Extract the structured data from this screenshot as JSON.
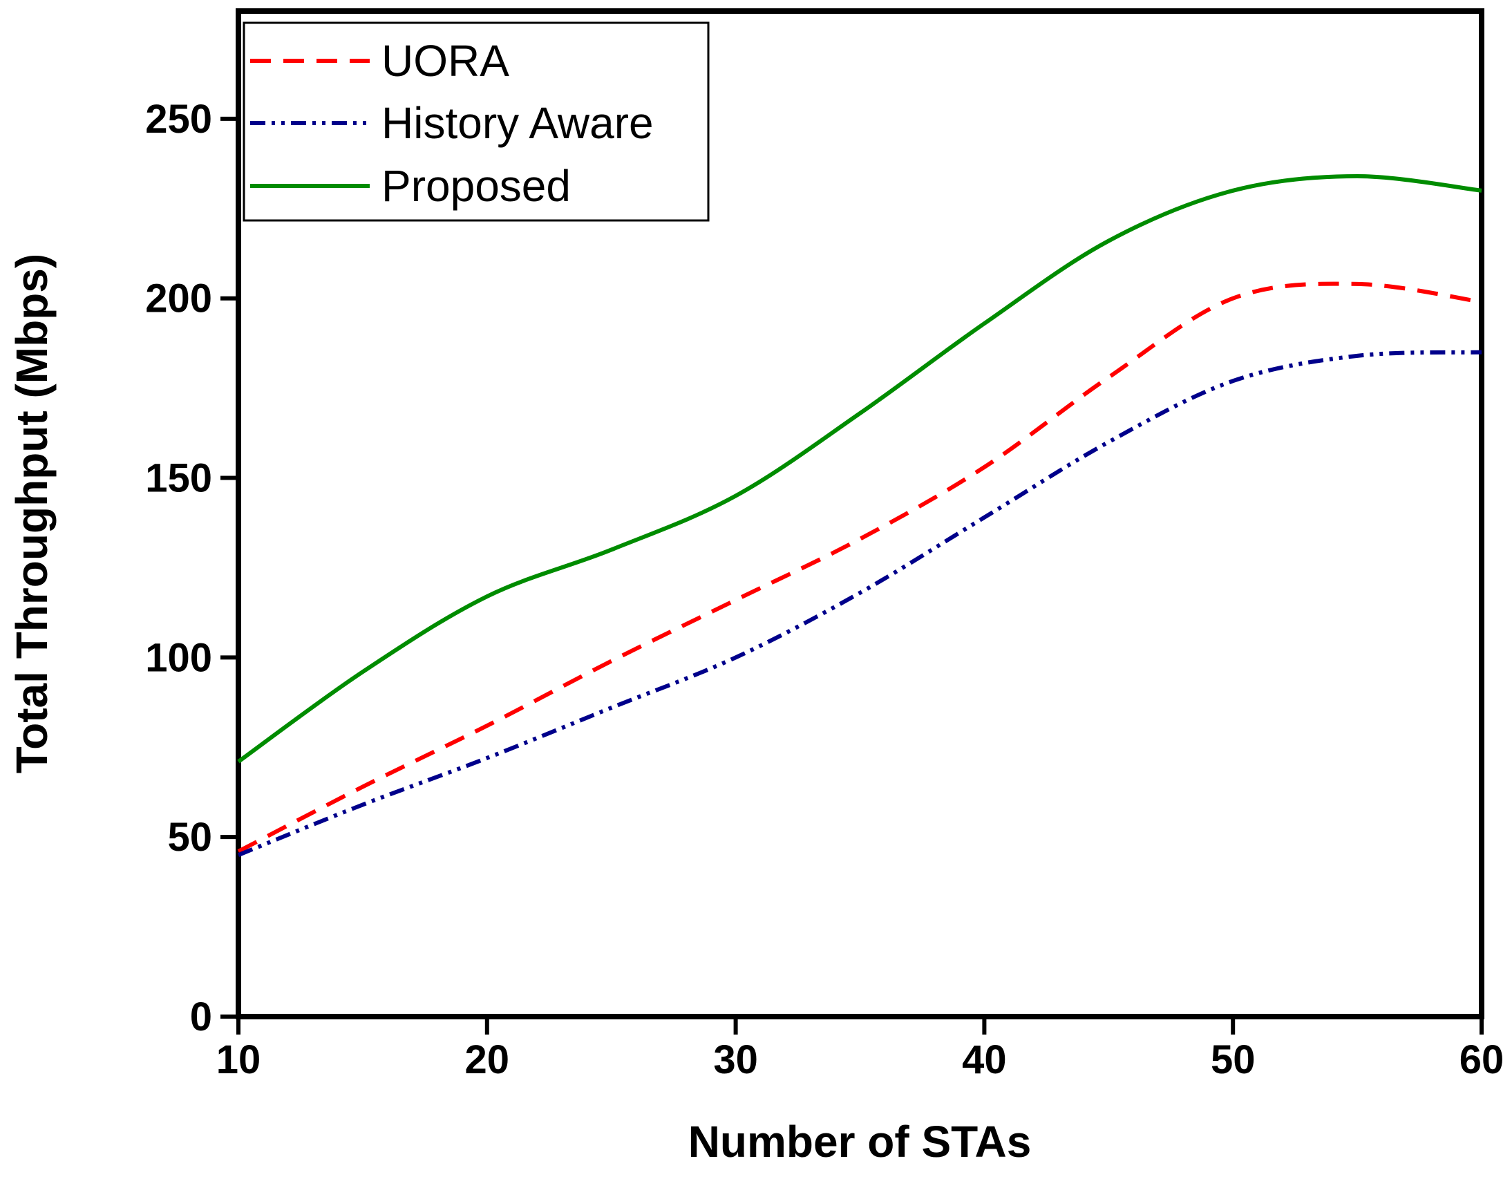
{
  "chart_data": {
    "type": "line",
    "title": "",
    "xlabel": "Number of STAs",
    "ylabel": "Total Throughput (Mbps)",
    "xlim": [
      10,
      60
    ],
    "ylim": [
      0,
      280
    ],
    "xticks": [
      10,
      20,
      30,
      40,
      50,
      60
    ],
    "yticks": [
      0,
      50,
      100,
      150,
      200,
      250
    ],
    "xtick_labels": [
      "10",
      "20",
      "30",
      "40",
      "50",
      "60"
    ],
    "ytick_labels": [
      "0",
      "50",
      "100",
      "150",
      "200",
      "250"
    ],
    "grid": false,
    "legend_position": "top-left",
    "x": [
      10,
      15,
      20,
      25,
      30,
      35,
      40,
      45,
      50,
      55,
      60
    ],
    "series": [
      {
        "name": "UORA",
        "color": "#ff0000",
        "dash": "dashed",
        "values": [
          46,
          64,
          81,
          99,
          116,
          133,
          153,
          178,
          200,
          204,
          199
        ]
      },
      {
        "name": "History Aware",
        "color": "#00008b",
        "dash": "dash-dot-dot",
        "values": [
          45,
          59,
          72,
          86,
          100,
          118,
          139,
          160,
          177,
          184,
          185
        ]
      },
      {
        "name": "Proposed",
        "color": "#008c00",
        "dash": "solid",
        "values": [
          71,
          96,
          117,
          130,
          145,
          168,
          193,
          216,
          230,
          234,
          230
        ]
      }
    ]
  }
}
